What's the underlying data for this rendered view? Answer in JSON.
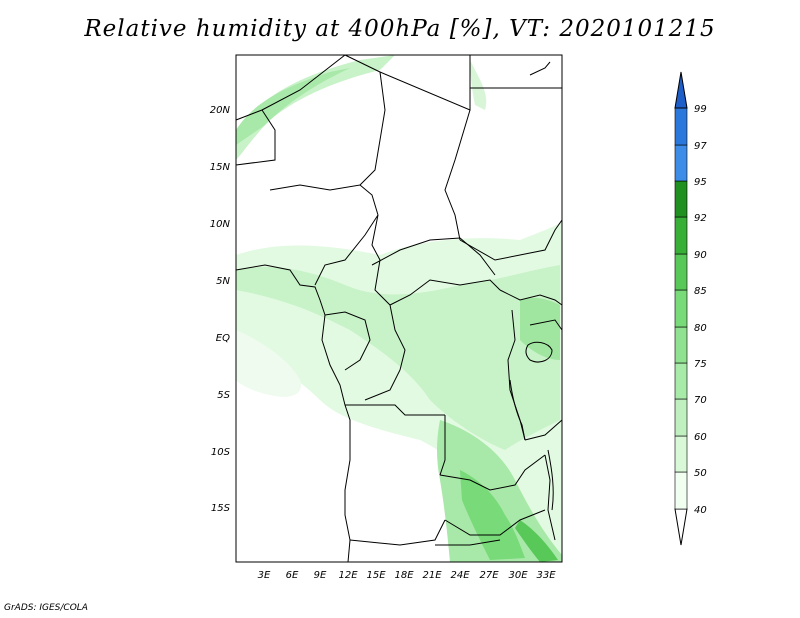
{
  "title": "Relative humidity at 400hPa [%], VT: 2020101215",
  "credit": "GrADS: IGES/COLA",
  "lat_labels": [
    "20N",
    "15N",
    "10N",
    "5N",
    "EQ",
    "5S",
    "10S",
    "15S"
  ],
  "lon_labels": [
    "3E",
    "6E",
    "9E",
    "12E",
    "15E",
    "18E",
    "21E",
    "24E",
    "27E",
    "30E",
    "33E"
  ],
  "legend": {
    "levels": [
      "40",
      "50",
      "60",
      "70",
      "75",
      "80",
      "85",
      "90",
      "92",
      "95",
      "97",
      "99"
    ],
    "colors": [
      "#f0fff0",
      "#d8f8d8",
      "#c0f0c0",
      "#a8eaa8",
      "#90e290",
      "#78da78",
      "#58c858",
      "#38b038",
      "#209020",
      "#3c8ce8",
      "#2b78dc",
      "#1e5ec8"
    ]
  },
  "colors": {
    "land_border": "#000000",
    "ocean": "#ffffff"
  }
}
